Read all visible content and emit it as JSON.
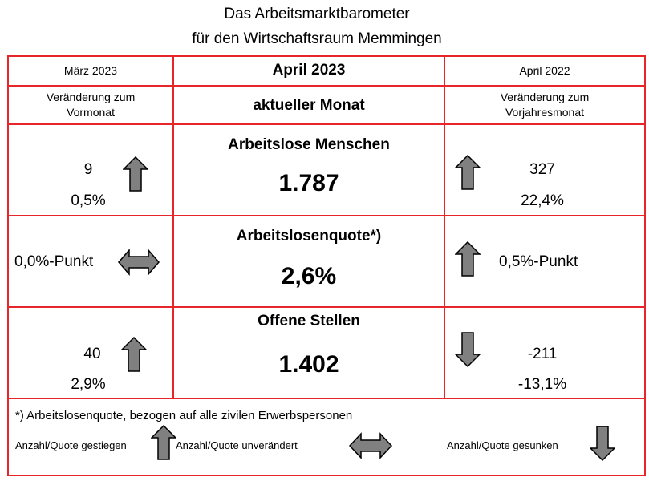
{
  "title": {
    "line1": "Das Arbeitsmarktbarometer",
    "line2": "für den Wirtschaftsraum Memmingen"
  },
  "header": {
    "left_month": "März 2023",
    "center_month": "April 2023",
    "right_month": "April 2022",
    "left_sub": "Veränderung zum Vormonat",
    "center_sub": "aktueller Monat",
    "right_sub": "Veränderung zum Vorjahresmonat"
  },
  "rows": [
    {
      "label": "Arbeitslose Menschen",
      "value": "1.787",
      "prev_month": {
        "count": "9",
        "pct": "0,5%",
        "trend": "up"
      },
      "prev_year": {
        "count": "327",
        "pct": "22,4%",
        "trend": "up"
      }
    },
    {
      "label": "Arbeitslosenquote*)",
      "value": "2,6%",
      "prev_month": {
        "text": "0,0%-Punkt",
        "trend": "unchanged"
      },
      "prev_year": {
        "text": "0,5%-Punkt",
        "trend": "up"
      }
    },
    {
      "label": "Offene Stellen",
      "value": "1.402",
      "prev_month": {
        "count": "40",
        "pct": "2,9%",
        "trend": "up"
      },
      "prev_year": {
        "count": "-211",
        "pct": "-13,1%",
        "trend": "down"
      }
    }
  ],
  "footnote": "*) Arbeitslosenquote, bezogen auf alle zivilen Erwerbspersonen",
  "legend": {
    "up": "Anzahl/Quote gestiegen",
    "unchanged": "Anzahl/Quote unverändert",
    "down": "Anzahl/Quote gesunken"
  },
  "colors": {
    "border": "#e8262a",
    "arrow_fill": "#808080",
    "arrow_stroke": "#000000"
  }
}
